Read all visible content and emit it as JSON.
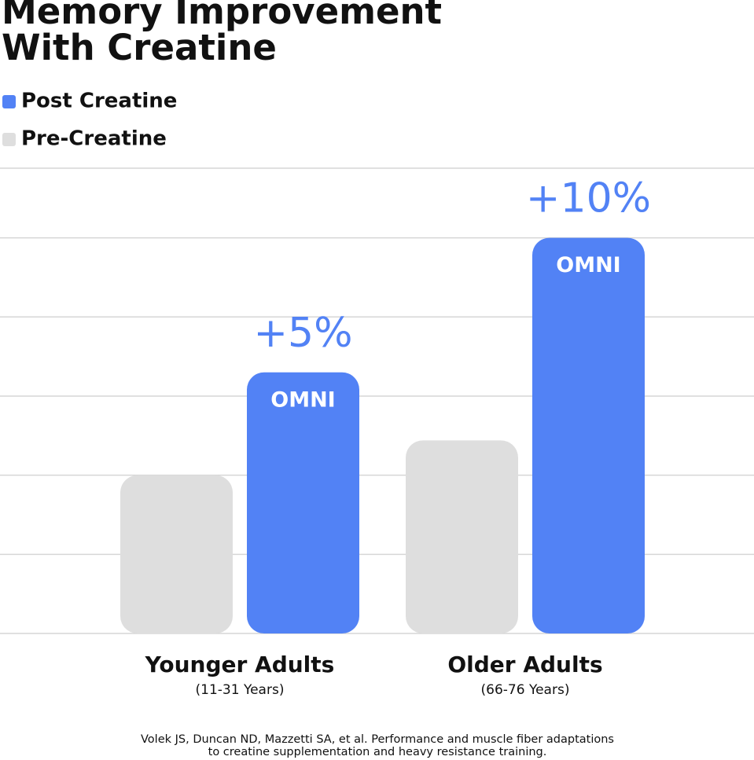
{
  "chart_data": {
    "type": "bar",
    "title": [
      "Memory Improvement",
      "With Creatine"
    ],
    "categories": [
      "Younger Adults",
      "Older Adults"
    ],
    "category_notes": [
      "(11-31 Years)",
      "(66-76 Years)"
    ],
    "series": [
      {
        "name": "Post Creatine",
        "color": "#5282f5",
        "values": [
          3.3,
          5.0
        ],
        "bar_labels": [
          "OMNI",
          "OMNI"
        ],
        "annotations": [
          "+5%",
          "+10%"
        ]
      },
      {
        "name": "Pre-Creatine",
        "color": "#dedede",
        "values": [
          2.0,
          2.44
        ]
      }
    ],
    "ylim": [
      0,
      5.88
    ],
    "yticks": [
      0,
      1,
      2,
      3,
      4,
      5
    ],
    "grid": true,
    "legend": "top-left",
    "source": [
      "Volek JS, Duncan ND, Mazzetti SA, et al. Performance and muscle fiber adaptations",
      "to creatine supplementation and heavy resistance training."
    ]
  }
}
